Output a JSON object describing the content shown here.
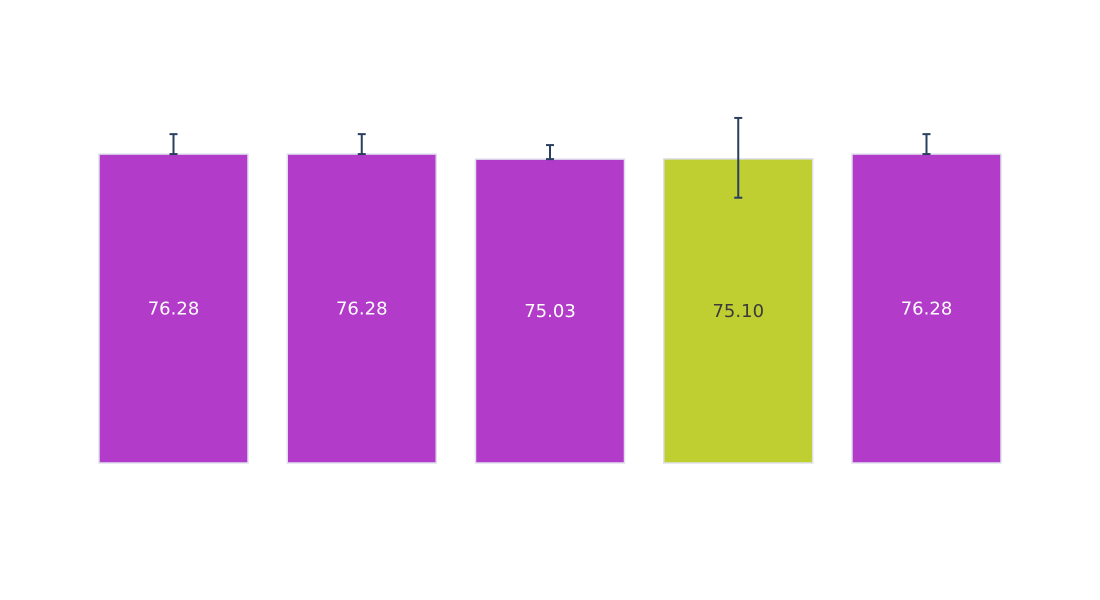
{
  "chart_data": {
    "type": "bar",
    "values": [
      76.28,
      76.28,
      75.03,
      75.1,
      76.28
    ],
    "labels": [
      "76.28",
      "76.28",
      "75.03",
      "75.10",
      "76.28"
    ],
    "errors": [
      {
        "low": 76.28,
        "high": 81.2
      },
      {
        "low": 76.28,
        "high": 81.2
      },
      {
        "low": 75.03,
        "high": 78.5
      },
      {
        "low": 65.5,
        "high": 85.2
      },
      {
        "low": 76.28,
        "high": 81.2
      }
    ],
    "ylim": [
      0,
      100
    ],
    "colors": [
      "#b23cc9",
      "#b23cc9",
      "#b23cc9",
      "#bfcf32",
      "#b23cc9"
    ],
    "label_colors": [
      "#ffffff",
      "#ffffff",
      "#ffffff",
      "#3b3b3b",
      "#ffffff"
    ],
    "error_bar_color": "#2a3f5f",
    "bar_border_color": "#e0e0ec",
    "grid": false,
    "legend": "none"
  }
}
